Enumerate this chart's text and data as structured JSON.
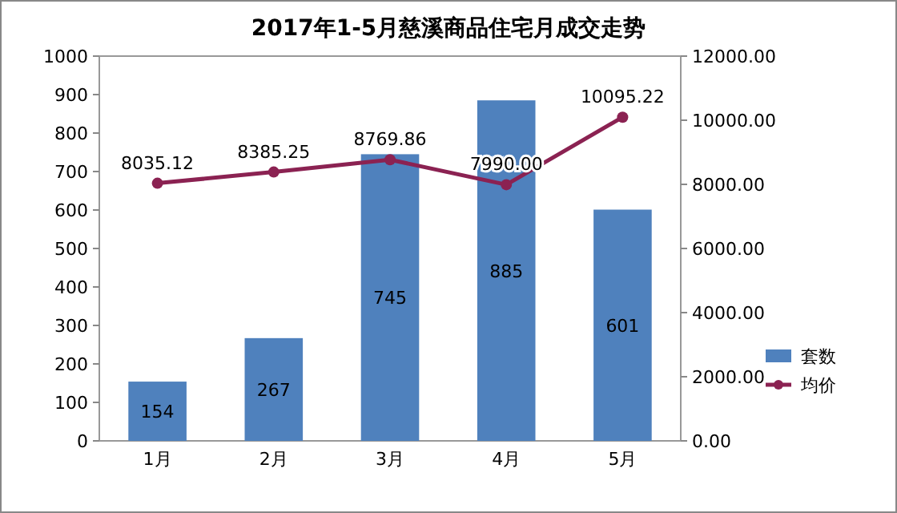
{
  "chart_data": {
    "type": "bar",
    "title": "2017年1-5月慈溪商品住宅月成交走势",
    "categories": [
      "1月",
      "2月",
      "3月",
      "4月",
      "5月"
    ],
    "series": [
      {
        "name": "套数",
        "color": "#4f81bd",
        "values": [
          154,
          267,
          745,
          885,
          601
        ]
      },
      {
        "name": "均价",
        "type": "line",
        "axis": "y2",
        "color": "#8b2252",
        "marker": "circle",
        "values": [
          8035.12,
          8385.25,
          8769.86,
          7990.0,
          10095.22
        ],
        "value_labels": [
          "8035.12",
          "8385.25",
          "8769.86",
          "7990.00",
          "10095.22"
        ]
      }
    ],
    "ylim": [
      0,
      1000
    ],
    "yticks": [
      0,
      100,
      200,
      300,
      400,
      500,
      600,
      700,
      800,
      900,
      1000
    ],
    "y2lim": [
      0,
      12000
    ],
    "y2ticks": [
      {
        "value": 0,
        "label": "0.00"
      },
      {
        "value": 2000,
        "label": "2000.00"
      },
      {
        "value": 4000,
        "label": "4000.00"
      },
      {
        "value": 6000,
        "label": "6000.00"
      },
      {
        "value": 8000,
        "label": "8000.00"
      },
      {
        "value": 10000,
        "label": "10000.00"
      },
      {
        "value": 12000,
        "label": "12000.00"
      }
    ],
    "data_labels": true,
    "legend": "right"
  }
}
